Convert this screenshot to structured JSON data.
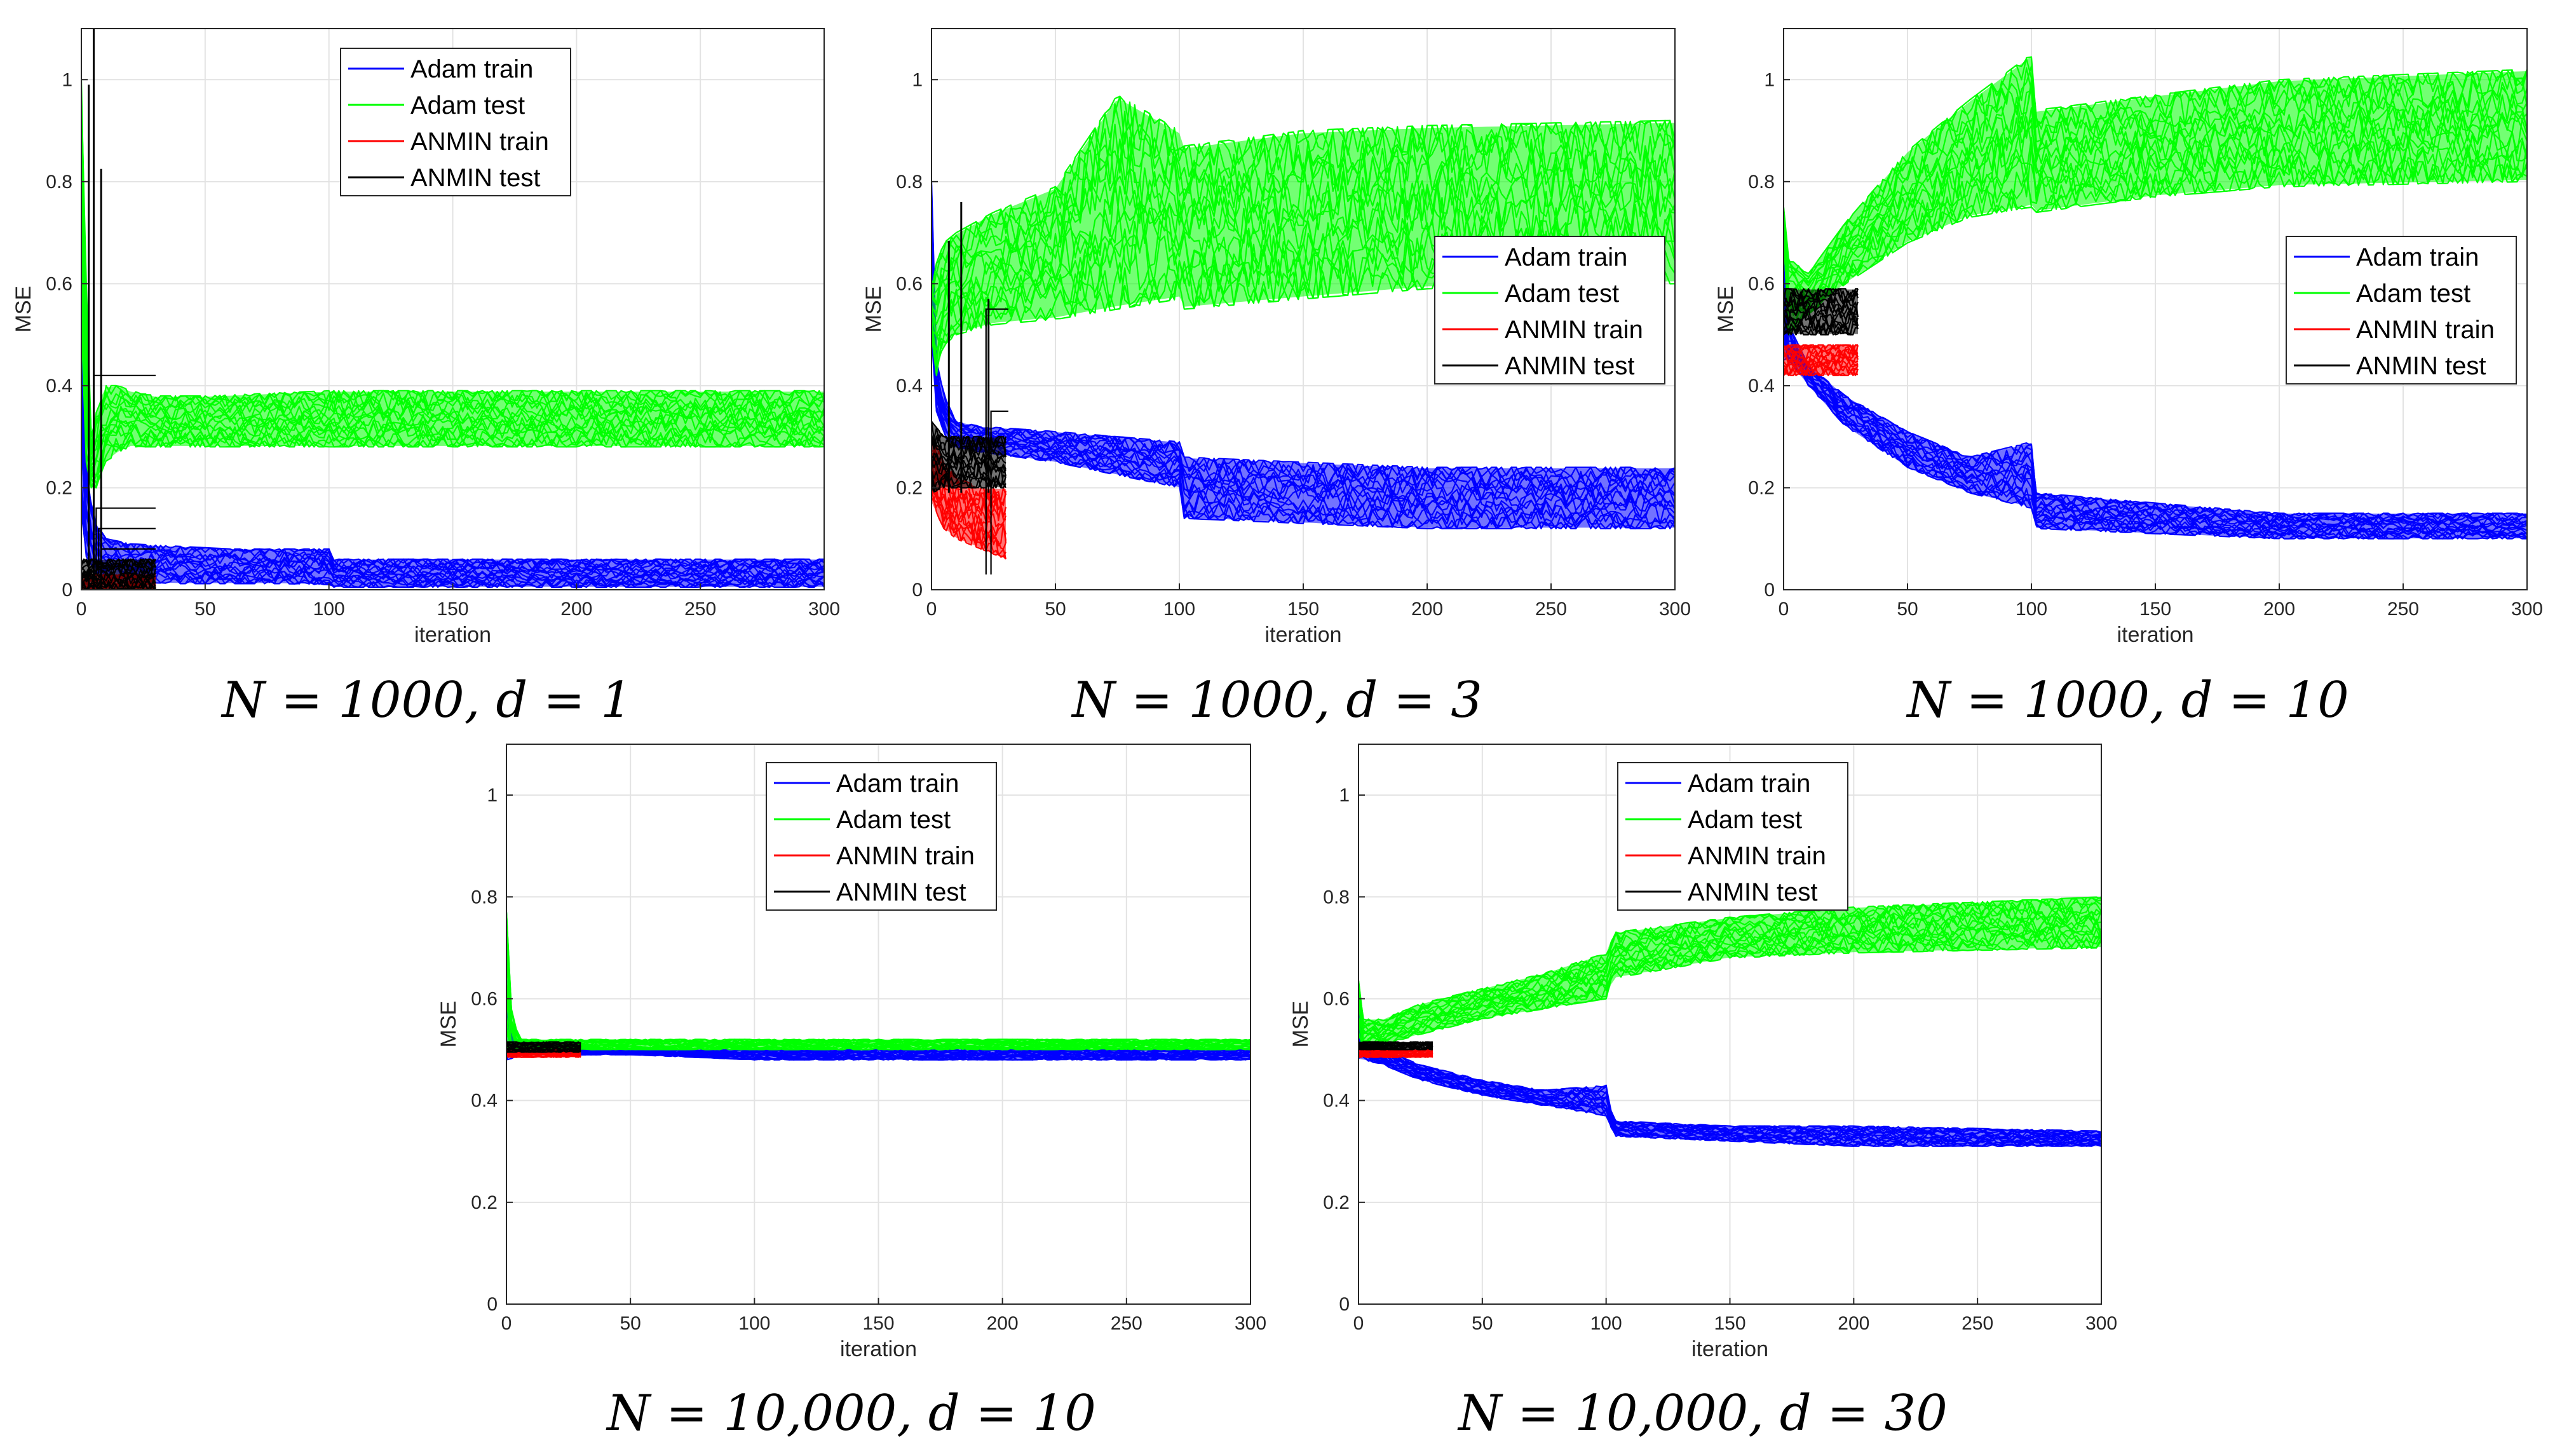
{
  "chart_data": [
    {
      "type": "line",
      "caption": "N = 1000, d = 1",
      "xlabel": "iteration",
      "ylabel": "MSE",
      "xlim": [
        0,
        300
      ],
      "ylim": [
        0,
        1.1
      ],
      "xticks": [
        "0",
        "50",
        "100",
        "150",
        "200",
        "250",
        "300"
      ],
      "yticks": [
        "0",
        "0.2",
        "0.4",
        "0.6",
        "0.8",
        "1"
      ],
      "legend_position": "top-center",
      "legend": [
        "Adam train",
        "Adam test",
        "ANMIN train",
        "ANMIN test"
      ],
      "series": [
        {
          "name": "Adam train",
          "color": "#0000ff",
          "x": [
            0,
            1,
            3,
            6,
            10,
            20,
            40,
            60,
            80,
            100,
            102,
            150,
            200,
            300
          ],
          "lower": [
            0.15,
            0.08,
            0.05,
            0.03,
            0.02,
            0.015,
            0.012,
            0.012,
            0.012,
            0.01,
            0.005,
            0.005,
            0.005,
            0.005
          ],
          "upper": [
            0.5,
            0.3,
            0.2,
            0.13,
            0.1,
            0.09,
            0.085,
            0.08,
            0.08,
            0.08,
            0.06,
            0.06,
            0.06,
            0.06
          ]
        },
        {
          "name": "Adam test",
          "color": "#00ff00",
          "x": [
            0,
            1,
            2,
            4,
            6,
            8,
            10,
            15,
            20,
            30,
            50,
            100,
            150,
            200,
            300
          ],
          "lower": [
            0.5,
            0.3,
            0.25,
            0.2,
            0.2,
            0.22,
            0.25,
            0.27,
            0.28,
            0.28,
            0.28,
            0.28,
            0.28,
            0.28,
            0.28
          ],
          "upper": [
            1.0,
            0.95,
            0.6,
            0.3,
            0.35,
            0.38,
            0.4,
            0.4,
            0.39,
            0.38,
            0.38,
            0.39,
            0.39,
            0.39,
            0.39
          ]
        },
        {
          "name": "ANMIN train",
          "color": "#ff0000",
          "x": [
            0,
            30
          ],
          "lower": [
            0.0,
            0.0
          ],
          "upper": [
            0.03,
            0.03
          ]
        },
        {
          "name": "ANMIN test",
          "color": "#000000",
          "x": [
            0,
            30
          ],
          "lower": [
            0.0,
            0.0
          ],
          "upper": [
            0.06,
            0.06
          ],
          "stray_levels": [
            0.42,
            0.16,
            0.12,
            0.08
          ],
          "spike_max": 1.1
        }
      ]
    },
    {
      "type": "line",
      "caption": "N = 1000, d = 3",
      "xlabel": "iteration",
      "ylabel": "MSE",
      "xlim": [
        0,
        300
      ],
      "ylim": [
        0,
        1.1
      ],
      "xticks": [
        "0",
        "50",
        "100",
        "150",
        "200",
        "250",
        "300"
      ],
      "yticks": [
        "0",
        "0.2",
        "0.4",
        "0.6",
        "0.8",
        "1"
      ],
      "legend_position": "right-middle",
      "legend": [
        "Adam train",
        "Adam test",
        "ANMIN train",
        "ANMIN test"
      ],
      "series": [
        {
          "name": "Adam train",
          "color": "#0000ff",
          "x": [
            0,
            2,
            5,
            10,
            20,
            50,
            100,
            102,
            150,
            200,
            300
          ],
          "lower": [
            0.5,
            0.35,
            0.3,
            0.28,
            0.27,
            0.25,
            0.2,
            0.14,
            0.13,
            0.12,
            0.12
          ],
          "upper": [
            0.8,
            0.45,
            0.38,
            0.33,
            0.32,
            0.31,
            0.29,
            0.26,
            0.25,
            0.24,
            0.24
          ]
        },
        {
          "name": "Adam test",
          "color": "#00ff00",
          "x": [
            0,
            2,
            5,
            10,
            25,
            50,
            75,
            100,
            102,
            150,
            200,
            300
          ],
          "lower": [
            0.5,
            0.42,
            0.48,
            0.5,
            0.52,
            0.53,
            0.55,
            0.57,
            0.55,
            0.57,
            0.59,
            0.6
          ],
          "upper": [
            0.6,
            0.64,
            0.68,
            0.7,
            0.74,
            0.79,
            0.97,
            0.9,
            0.87,
            0.9,
            0.91,
            0.92
          ]
        },
        {
          "name": "ANMIN train",
          "color": "#ff0000",
          "x": [
            0,
            5,
            10,
            20,
            30
          ],
          "lower": [
            0.17,
            0.12,
            0.1,
            0.08,
            0.06
          ],
          "upper": [
            0.3,
            0.25,
            0.22,
            0.2,
            0.2
          ]
        },
        {
          "name": "ANMIN test",
          "color": "#000000",
          "x": [
            0,
            5,
            10,
            20,
            30
          ],
          "lower": [
            0.19,
            0.2,
            0.2,
            0.2,
            0.2
          ],
          "upper": [
            0.33,
            0.3,
            0.3,
            0.3,
            0.3
          ],
          "stray_levels": [
            0.55,
            0.35
          ],
          "spike_max": 0.76
        }
      ]
    },
    {
      "type": "line",
      "caption": "N = 1000, d = 10",
      "xlabel": "iteration",
      "ylabel": "MSE",
      "xlim": [
        0,
        300
      ],
      "ylim": [
        0,
        1.1
      ],
      "xticks": [
        "0",
        "50",
        "100",
        "150",
        "200",
        "250",
        "300"
      ],
      "yticks": [
        "0",
        "0.2",
        "0.4",
        "0.6",
        "0.8",
        "1"
      ],
      "legend_position": "right-middle",
      "legend": [
        "Adam train",
        "Adam test",
        "ANMIN train",
        "ANMIN test"
      ],
      "series": [
        {
          "name": "Adam train",
          "color": "#0000ff",
          "x": [
            0,
            2,
            10,
            25,
            50,
            75,
            100,
            102,
            150,
            200,
            300
          ],
          "lower": [
            0.45,
            0.45,
            0.4,
            0.32,
            0.24,
            0.19,
            0.16,
            0.12,
            0.11,
            0.1,
            0.1
          ],
          "upper": [
            0.7,
            0.52,
            0.44,
            0.38,
            0.31,
            0.26,
            0.29,
            0.19,
            0.17,
            0.15,
            0.15
          ]
        },
        {
          "name": "Adam test",
          "color": "#00ff00",
          "x": [
            0,
            2,
            10,
            25,
            50,
            75,
            100,
            102,
            150,
            200,
            300
          ],
          "lower": [
            0.7,
            0.5,
            0.54,
            0.6,
            0.68,
            0.73,
            0.75,
            0.74,
            0.77,
            0.79,
            0.8
          ],
          "upper": [
            0.75,
            0.65,
            0.62,
            0.72,
            0.86,
            0.96,
            1.05,
            0.94,
            0.97,
            1.0,
            1.02
          ]
        },
        {
          "name": "ANMIN train",
          "color": "#ff0000",
          "x": [
            0,
            30
          ],
          "lower": [
            0.42,
            0.42
          ],
          "upper": [
            0.48,
            0.48
          ]
        },
        {
          "name": "ANMIN test",
          "color": "#000000",
          "x": [
            0,
            30
          ],
          "lower": [
            0.5,
            0.5
          ],
          "upper": [
            0.59,
            0.59
          ],
          "stray_levels": [],
          "spike_max": 0.6
        }
      ]
    },
    {
      "type": "line",
      "caption": "N = 10,000, d = 10",
      "xlabel": "iteration",
      "ylabel": "MSE",
      "xlim": [
        0,
        300
      ],
      "ylim": [
        0,
        1.1
      ],
      "xticks": [
        "0",
        "50",
        "100",
        "150",
        "200",
        "250",
        "300"
      ],
      "yticks": [
        "0",
        "0.2",
        "0.4",
        "0.6",
        "0.8",
        "1"
      ],
      "legend_position": "top-right",
      "legend": [
        "Adam train",
        "Adam test",
        "ANMIN train",
        "ANMIN test"
      ],
      "series": [
        {
          "name": "Adam train",
          "color": "#0000ff",
          "x": [
            0,
            1,
            5,
            50,
            100,
            300
          ],
          "lower": [
            0.48,
            0.48,
            0.49,
            0.49,
            0.48,
            0.48
          ],
          "upper": [
            0.77,
            0.58,
            0.5,
            0.5,
            0.5,
            0.5
          ]
        },
        {
          "name": "Adam test",
          "color": "#00ff00",
          "x": [
            0,
            1,
            5,
            50,
            100,
            300
          ],
          "lower": [
            0.5,
            0.49,
            0.5,
            0.5,
            0.5,
            0.5
          ],
          "upper": [
            0.77,
            0.6,
            0.52,
            0.52,
            0.52,
            0.52
          ]
        },
        {
          "name": "ANMIN train",
          "color": "#ff0000",
          "x": [
            0,
            30
          ],
          "lower": [
            0.485,
            0.485
          ],
          "upper": [
            0.5,
            0.5
          ]
        },
        {
          "name": "ANMIN test",
          "color": "#000000",
          "x": [
            0,
            30
          ],
          "lower": [
            0.495,
            0.495
          ],
          "upper": [
            0.515,
            0.515
          ],
          "stray_levels": [],
          "spike_max": 0.52
        }
      ]
    },
    {
      "type": "line",
      "caption": "N = 10,000, d = 30",
      "xlabel": "iteration",
      "ylabel": "MSE",
      "xlim": [
        0,
        300
      ],
      "ylim": [
        0,
        1.1
      ],
      "xticks": [
        "0",
        "50",
        "100",
        "150",
        "200",
        "250",
        "300"
      ],
      "yticks": [
        "0",
        "0.2",
        "0.4",
        "0.6",
        "0.8",
        "1"
      ],
      "legend_position": "top-center",
      "legend": [
        "Adam train",
        "Adam test",
        "ANMIN train",
        "ANMIN test"
      ],
      "series": [
        {
          "name": "Adam train",
          "color": "#0000ff",
          "x": [
            0,
            2,
            10,
            25,
            50,
            75,
            100,
            103,
            150,
            200,
            300
          ],
          "lower": [
            0.48,
            0.48,
            0.47,
            0.44,
            0.41,
            0.39,
            0.37,
            0.33,
            0.32,
            0.31,
            0.31
          ],
          "upper": [
            0.62,
            0.51,
            0.5,
            0.47,
            0.44,
            0.42,
            0.43,
            0.36,
            0.35,
            0.35,
            0.34
          ]
        },
        {
          "name": "Adam test",
          "color": "#00ff00",
          "x": [
            0,
            2,
            10,
            25,
            50,
            75,
            100,
            103,
            150,
            200,
            300
          ],
          "lower": [
            0.53,
            0.5,
            0.51,
            0.53,
            0.56,
            0.58,
            0.6,
            0.64,
            0.68,
            0.69,
            0.7
          ],
          "upper": [
            0.64,
            0.56,
            0.56,
            0.59,
            0.62,
            0.65,
            0.69,
            0.73,
            0.76,
            0.78,
            0.8
          ]
        },
        {
          "name": "ANMIN train",
          "color": "#ff0000",
          "x": [
            0,
            30
          ],
          "lower": [
            0.485,
            0.485
          ],
          "upper": [
            0.5,
            0.5
          ]
        },
        {
          "name": "ANMIN test",
          "color": "#000000",
          "x": [
            0,
            30
          ],
          "lower": [
            0.5,
            0.5
          ],
          "upper": [
            0.515,
            0.515
          ],
          "stray_levels": [],
          "spike_max": 0.52
        }
      ]
    }
  ]
}
